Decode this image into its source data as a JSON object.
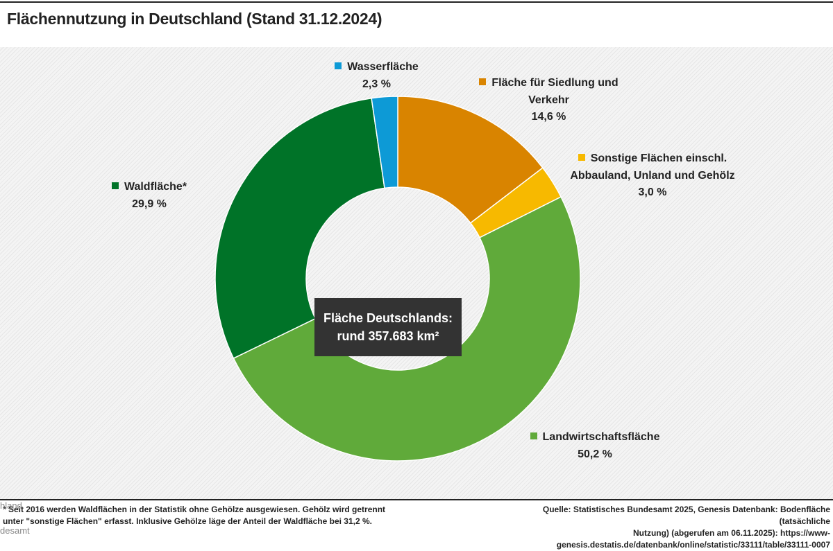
{
  "chart_data": {
    "type": "donut",
    "title": "Flächennutzung in Deutschland (Stand 31.12.2024)",
    "categories": [
      "Fläche für Siedlung und Verkehr",
      "Sonstige Flächen einschl. Abbauland, Unland und Gehölz",
      "Landwirtschaftsfläche",
      "Waldfläche*",
      "Wasserfläche"
    ],
    "values": [
      14.6,
      3.0,
      50.2,
      29.9,
      2.3
    ],
    "value_labels": [
      "14,6 %",
      "3,0 %",
      "50,2 %",
      "29,9 %",
      "2,3 %"
    ],
    "colors": [
      "#d98400",
      "#f7b900",
      "#60aa3a",
      "#007328",
      "#0d9ad6"
    ],
    "annotation": [
      "Fläche Deutschlands:",
      "rund 357.683 km²"
    ],
    "footnote": [
      "* Seit 2016 werden Waldflächen in der Statistik ohne Gehölze ausgewiesen. Gehölz wird getrennt",
      "unter \"sonstige Flächen\" erfasst. Inklusive Gehölze läge der Anteil der Waldfläche bei 31,2 %."
    ],
    "source": [
      "Quelle: Statistisches Bundesamt 2025, Genesis Datenbank: Bodenfläche (tatsächliche",
      "Nutzung) (abgerufen am 06.11.2025): https://www-",
      "genesis.destatis.de/datenbank/online/statistic/33111/table/33111-0007"
    ],
    "overlay_text": [
      "hland",
      "desamt"
    ]
  }
}
